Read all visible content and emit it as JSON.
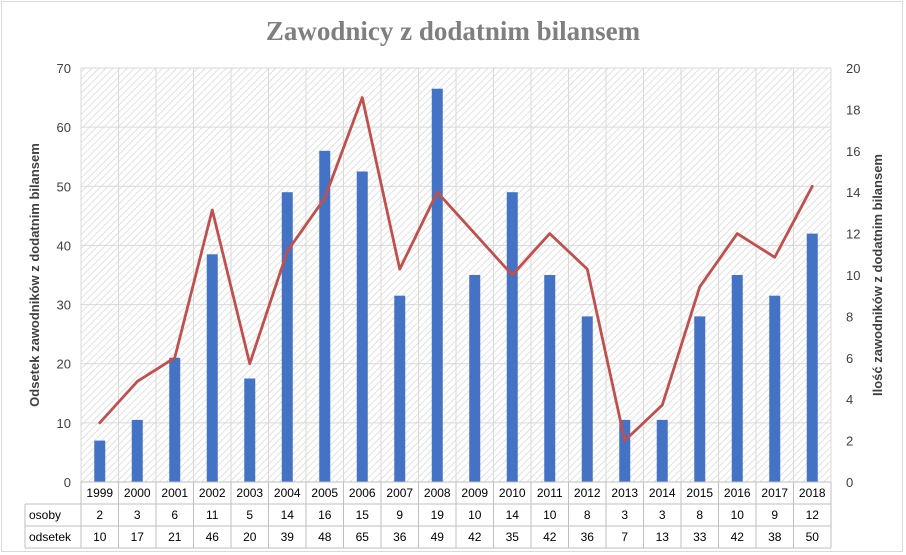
{
  "colors": {
    "bar": "#4472c4",
    "line": "#c0504d",
    "title": "#7f7f7f",
    "grid": "#d9d9d9"
  },
  "chart_data": {
    "type": "bar",
    "title": "Zawodnicy z dodatnim bilansem",
    "categories": [
      "1999",
      "2000",
      "2001",
      "2002",
      "2003",
      "2004",
      "2005",
      "2006",
      "2007",
      "2008",
      "2009",
      "2010",
      "2011",
      "2012",
      "2013",
      "2014",
      "2015",
      "2016",
      "2017",
      "2018"
    ],
    "y_left_label": "Odsetek zawodników z dodatnim bilansem",
    "y_right_label": "Ilość zawodników z dodatnim bilansem",
    "y_left_lim": [
      0,
      70
    ],
    "y_right_lim": [
      0,
      20
    ],
    "y_left_ticks": [
      "0",
      "10",
      "20",
      "30",
      "40",
      "50",
      "60",
      "70"
    ],
    "y_right_ticks": [
      "0",
      "2",
      "4",
      "6",
      "8",
      "10",
      "12",
      "14",
      "16",
      "18",
      "20"
    ],
    "grid": true,
    "pattern_fill": true,
    "series": [
      {
        "name": "osoby",
        "type": "bar",
        "axis": "right",
        "values": [
          2,
          3,
          6,
          11,
          5,
          14,
          16,
          15,
          9,
          19,
          10,
          14,
          10,
          8,
          3,
          3,
          8,
          10,
          9,
          12
        ]
      },
      {
        "name": "odsetek",
        "type": "line",
        "axis": "left",
        "values": [
          10,
          17,
          21,
          46,
          20,
          39,
          48,
          65,
          36,
          49,
          42,
          35,
          42,
          36,
          7,
          13,
          33,
          42,
          38,
          50
        ]
      }
    ]
  }
}
